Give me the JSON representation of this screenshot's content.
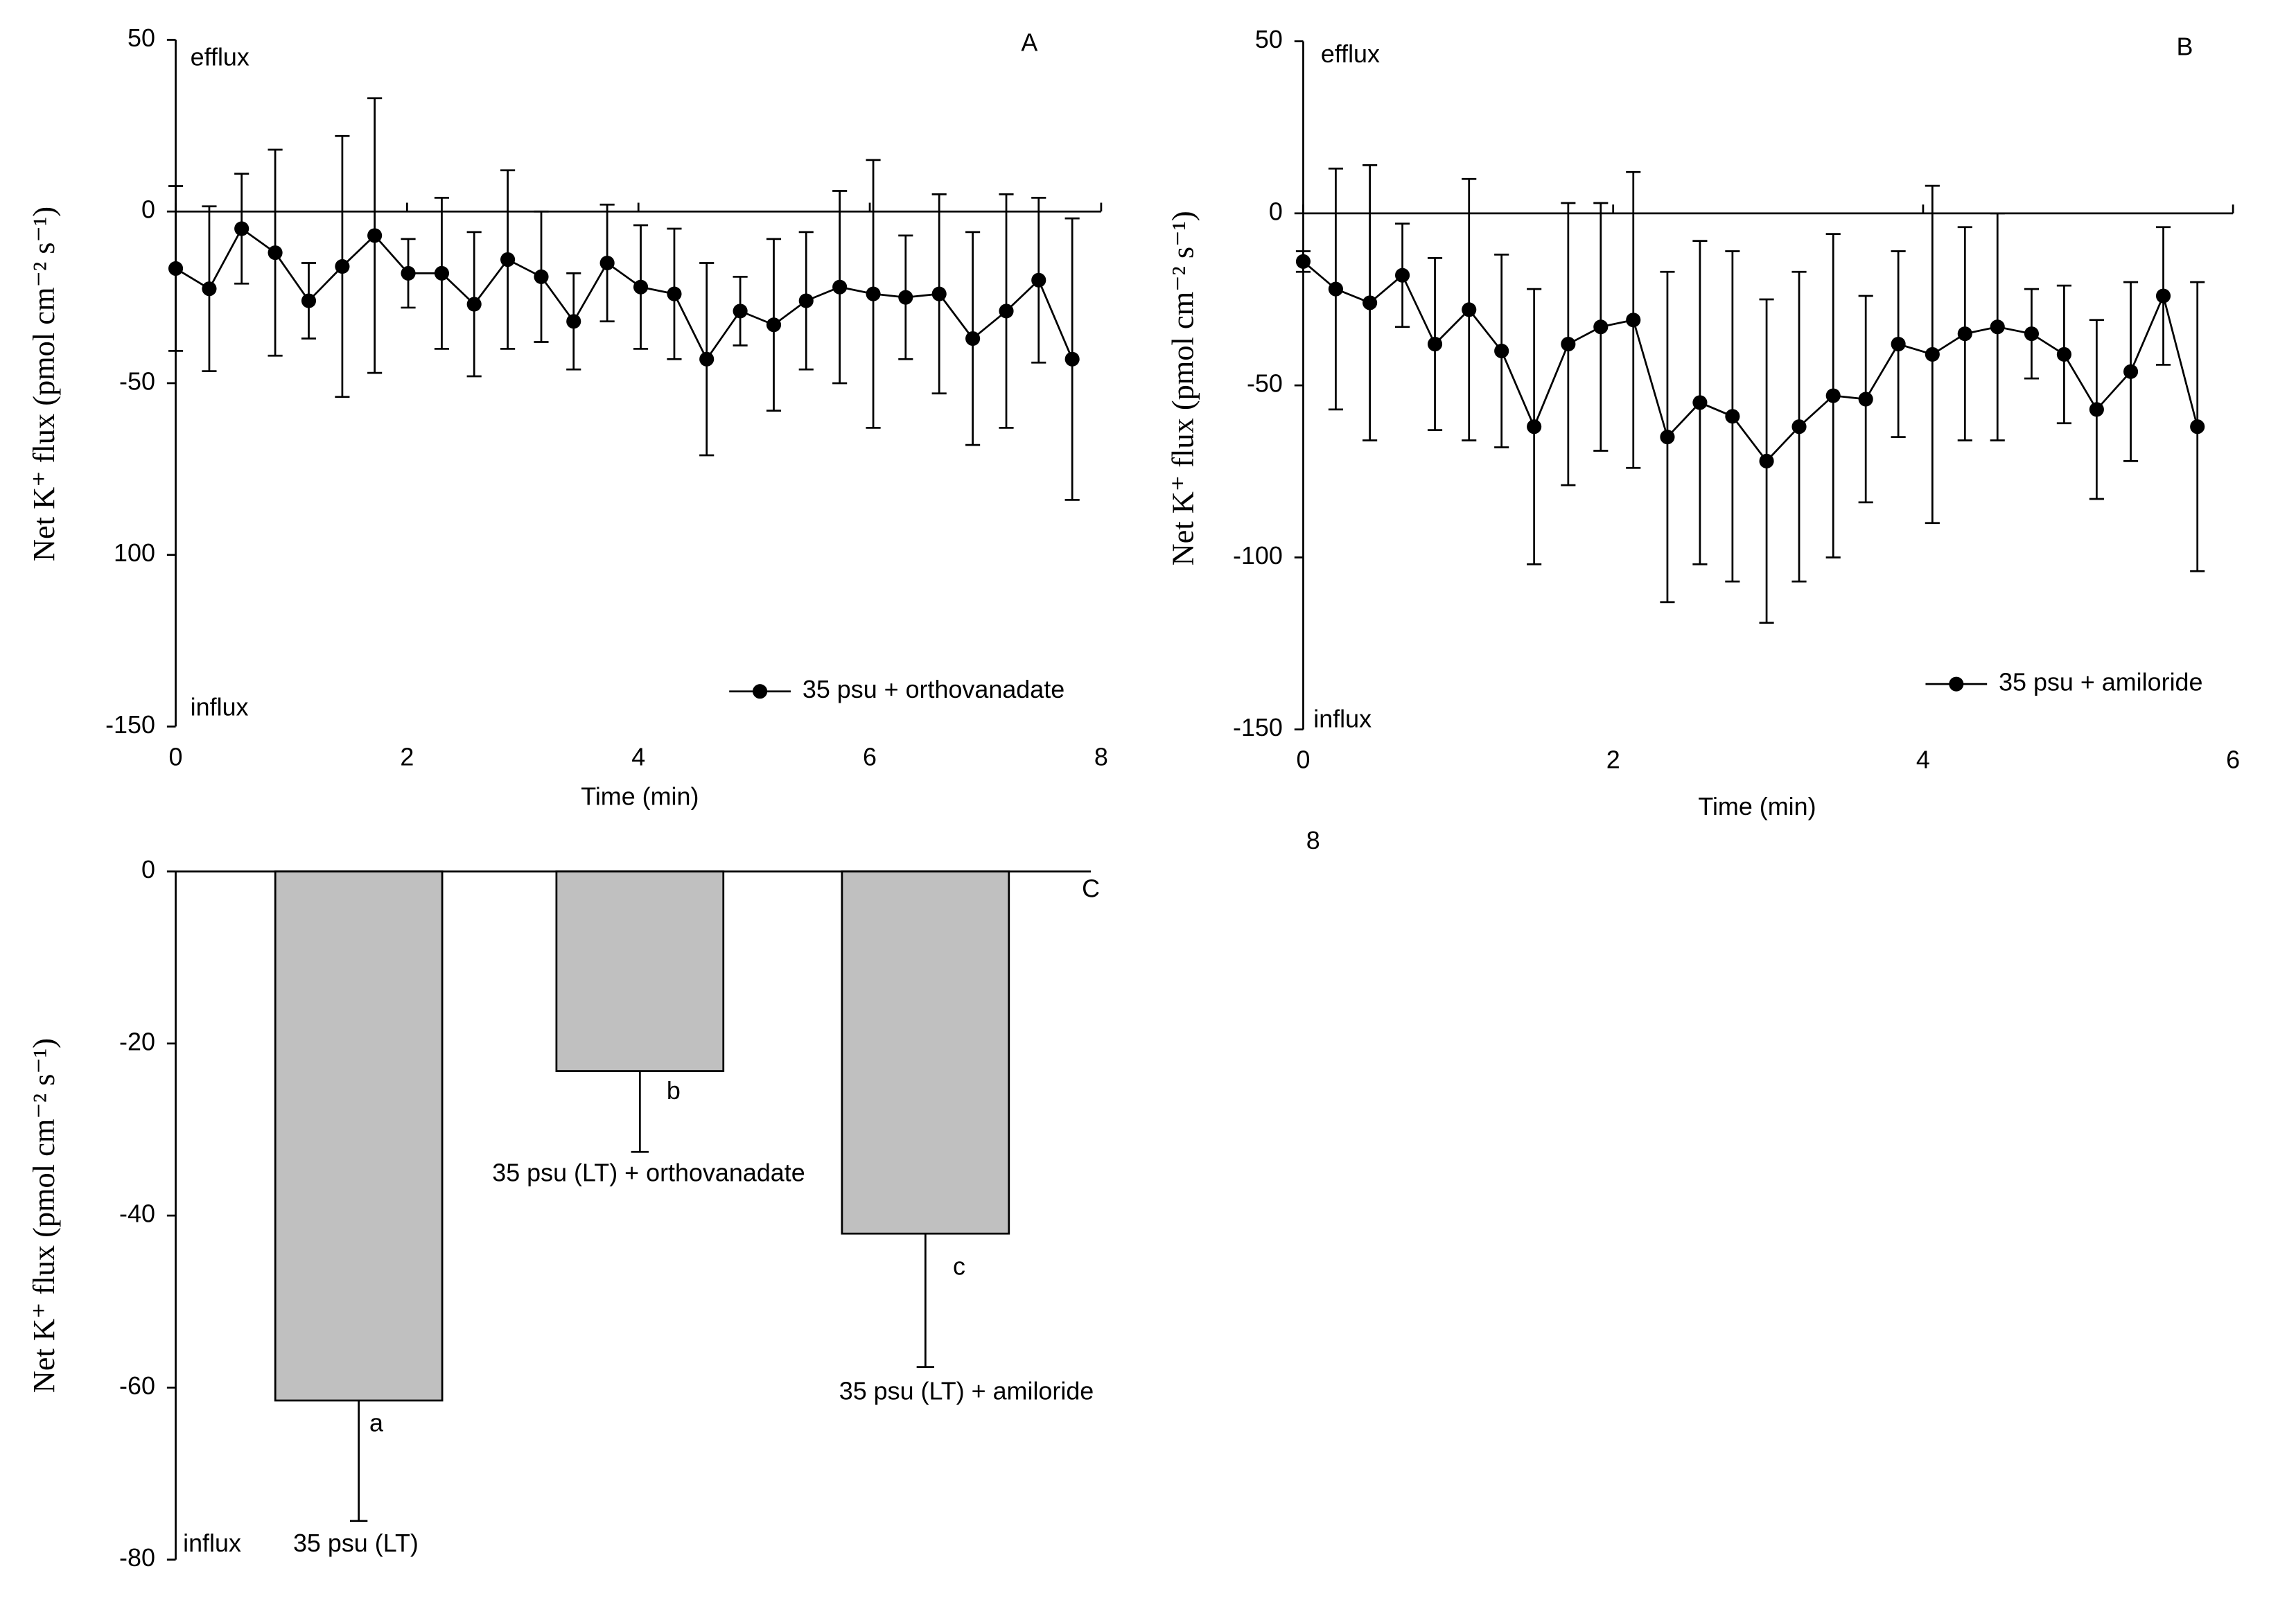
{
  "chart_data": [
    {
      "type": "line",
      "panel": "A",
      "y_label": "Net K⁺ flux (pmol cm⁻² s⁻¹)",
      "x_label": "Time (min)",
      "annotations": [
        "efflux",
        "influx"
      ],
      "xlim": [
        0,
        8
      ],
      "xticks": [
        0,
        2,
        4,
        6,
        8
      ],
      "ylim": [
        -150,
        50
      ],
      "yticks": [
        50,
        0,
        -50,
        {
          "value": -100,
          "label": "100"
        },
        -150
      ],
      "x": [
        0,
        0.29,
        0.57,
        0.86,
        1.15,
        1.44,
        1.72,
        2.01,
        2.3,
        2.58,
        2.87,
        3.16,
        3.44,
        3.73,
        4.02,
        4.31,
        4.59,
        4.88,
        5.17,
        5.45,
        5.74,
        6.03,
        6.31,
        6.6,
        6.89,
        7.18,
        7.46,
        7.75
      ],
      "series": [
        {
          "name": "35 psu + orthovanadate",
          "color": "#000000",
          "values": [
            -16.6,
            -22.5,
            -5,
            -12,
            -26,
            -16,
            -7,
            -18,
            -18,
            -27,
            -14,
            -19,
            -32,
            -15,
            -22,
            -24,
            -43,
            -29,
            -33,
            -26,
            -22,
            -24,
            -25,
            -24,
            -37,
            -29,
            -20,
            -43
          ],
          "errors": [
            24,
            24,
            16,
            30,
            11,
            38,
            40,
            10,
            22,
            21,
            26,
            19,
            14,
            17,
            18,
            19,
            28,
            10,
            25,
            20,
            28,
            39,
            18,
            29,
            31,
            34,
            24,
            41
          ]
        }
      ]
    },
    {
      "type": "line",
      "panel": "B",
      "y_label": "Net K⁺ flux (pmol cm⁻² s⁻¹)",
      "x_label": "Time (min)",
      "annotations": [
        "efflux",
        "influx",
        "8"
      ],
      "xlim": [
        0,
        6
      ],
      "xticks": [
        0,
        2,
        4,
        6
      ],
      "ylim": [
        -150,
        50
      ],
      "yticks": [
        50,
        0,
        -50,
        -100,
        -150
      ],
      "x": [
        0,
        0.21,
        0.43,
        0.64,
        0.85,
        1.07,
        1.28,
        1.49,
        1.71,
        1.92,
        2.13,
        2.35,
        2.56,
        2.77,
        2.99,
        3.2,
        3.42,
        3.63,
        3.84,
        4.06,
        4.27,
        4.48,
        4.7,
        4.91,
        5.12,
        5.34,
        5.55,
        5.77
      ],
      "series": [
        {
          "name": "35 psu + amiloride",
          "color": "#000000",
          "values": [
            -14,
            -22,
            -26,
            -18,
            -38,
            -28,
            -40,
            -62,
            -38,
            -33,
            -31,
            -65,
            -55,
            -59,
            -72,
            -62,
            -53,
            -54,
            -38,
            -41,
            -35,
            -33,
            -35,
            -41,
            -57,
            -46,
            -24,
            -62
          ],
          "errors": [
            3,
            35,
            40,
            15,
            25,
            38,
            28,
            40,
            41,
            36,
            43,
            48,
            47,
            48,
            47,
            45,
            47,
            30,
            27,
            49,
            31,
            33,
            13,
            20,
            26,
            26,
            20,
            42
          ]
        }
      ]
    },
    {
      "type": "bar",
      "panel": "C",
      "y_label": "Net K⁺ flux (pmol cm⁻² s⁻¹)",
      "annotations": [
        "influx"
      ],
      "categories": [
        "35 psu (LT)",
        "35 psu (LT) + orthovanadate",
        "35 psu (LT) + amiloride"
      ],
      "values": [
        -61.5,
        -23.2,
        -42.1
      ],
      "errors": [
        14,
        9.4,
        15.5
      ],
      "letters": [
        "a",
        "b",
        "c"
      ],
      "color": "#c0c0c0",
      "ylim": [
        -80,
        0
      ],
      "yticks": [
        0,
        -20,
        -40,
        -60,
        -80
      ]
    }
  ]
}
